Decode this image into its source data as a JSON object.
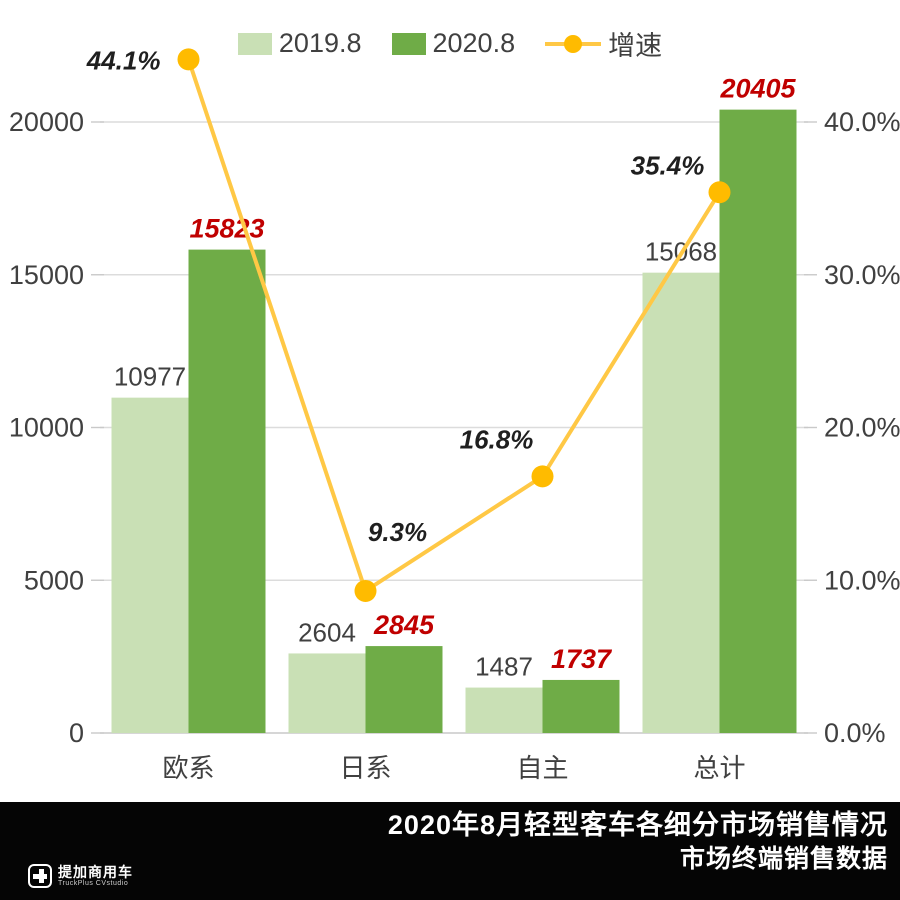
{
  "colors": {
    "bar_2019": "#C9E0B5",
    "bar_2020": "#6FAC47",
    "line": "#FFC845",
    "marker": "#FFBB00",
    "label_2019": "#404040",
    "label_2020": "#C00000",
    "pct_label": "#1F1F1F",
    "axis_text": "#404040",
    "grid": "#DCDCDC",
    "zero_line": "#C9C9C9",
    "footer_bg": "#050505"
  },
  "legend": {
    "items": [
      {
        "label": "2019.8",
        "marker": "swatch-light-green"
      },
      {
        "label": "2020.8",
        "marker": "swatch-dark-green"
      },
      {
        "label": "增速",
        "marker": "line-dot-yellow"
      }
    ]
  },
  "chart_data": {
    "type": "bar",
    "subtype": "grouped-bars-with-line",
    "categories": [
      "欧系",
      "日系",
      "自主",
      "总计"
    ],
    "series": [
      {
        "name": "2019.8",
        "type": "bar",
        "values": [
          10977,
          2604,
          1487,
          15068
        ],
        "value_labels": [
          "10977",
          "2604",
          "1487",
          "15068"
        ]
      },
      {
        "name": "2020.8",
        "type": "bar",
        "values": [
          15823,
          2845,
          1737,
          20405
        ],
        "value_labels": [
          "15823",
          "2845",
          "1737",
          "20405"
        ]
      },
      {
        "name": "增速",
        "type": "line",
        "values": [
          44.1,
          9.3,
          16.8,
          35.4
        ],
        "value_labels": [
          "44.1%",
          "9.3%",
          "16.8%",
          "35.4%"
        ],
        "axis": "right"
      }
    ],
    "left_axis": {
      "tick_values": [
        0,
        5000,
        10000,
        15000,
        20000
      ],
      "tick_labels": [
        "0",
        "5000",
        "10000",
        "15000",
        "20000"
      ],
      "max": 20000
    },
    "right_axis": {
      "tick_values": [
        0,
        10,
        20,
        30,
        40
      ],
      "tick_labels": [
        "0.0%",
        "10.0%",
        "20.0%",
        "30.0%",
        "40.0%"
      ],
      "max": 40
    },
    "grid": "horizontal",
    "legend_position": "top"
  },
  "footer": {
    "title_line1": "2020年8月轻型客车各细分市场销售情况",
    "title_line2": "市场终端销售数据",
    "logo_text": "提加商用车",
    "logo_subtext": "TruckPlus CVstudio"
  }
}
